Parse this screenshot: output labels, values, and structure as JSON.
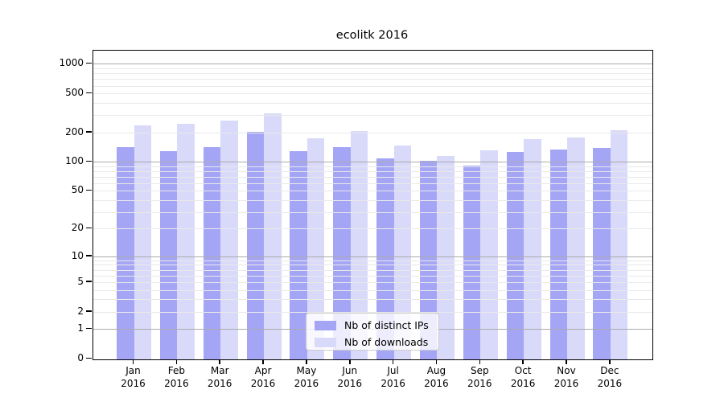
{
  "title": "ecolitk 2016",
  "legend": {
    "items": [
      {
        "label": "Nb of distinct IPs",
        "color": "#a5a5f6"
      },
      {
        "label": "Nb of downloads",
        "color": "#d9d9fa"
      }
    ]
  },
  "colors": {
    "bar_distinct_ips": "#a5a5f6",
    "bar_downloads": "#d9d9fa",
    "grid_major": "#ababab",
    "grid_minor": "#e9e9e9",
    "axis": "#000000",
    "legend_border": "#cccccc"
  },
  "chart_data": {
    "type": "bar",
    "title": "ecolitk 2016",
    "categories": [
      "Jan 2016",
      "Feb 2016",
      "Mar 2016",
      "Apr 2016",
      "May 2016",
      "Jun 2016",
      "Jul 2016",
      "Aug 2016",
      "Sep 2016",
      "Oct 2016",
      "Nov 2016",
      "Dec 2016"
    ],
    "series": [
      {
        "name": "Nb of distinct IPs",
        "color": "#a5a5f6",
        "values": [
          142,
          129,
          142,
          203,
          129,
          142,
          109,
          102,
          91,
          125,
          134,
          138
        ]
      },
      {
        "name": "Nb of downloads",
        "color": "#d9d9fa",
        "values": [
          236,
          247,
          264,
          312,
          173,
          208,
          147,
          115,
          130,
          170,
          178,
          210
        ]
      }
    ],
    "xlabel": "",
    "ylabel": "",
    "y_scale": "log1p",
    "y_ticks": [
      0,
      1,
      2,
      5,
      10,
      20,
      50,
      100,
      200,
      500,
      1000
    ],
    "y_minor_ticks": [
      3,
      4,
      6,
      7,
      8,
      9,
      30,
      40,
      60,
      70,
      80,
      90,
      300,
      400,
      600,
      700,
      800,
      900
    ],
    "y_major_gridlines": [
      1,
      10,
      100,
      1000
    ],
    "ylim": [
      0,
      1350
    ],
    "grid": true,
    "grid_above_bars": true,
    "legend_position": "lower center"
  }
}
